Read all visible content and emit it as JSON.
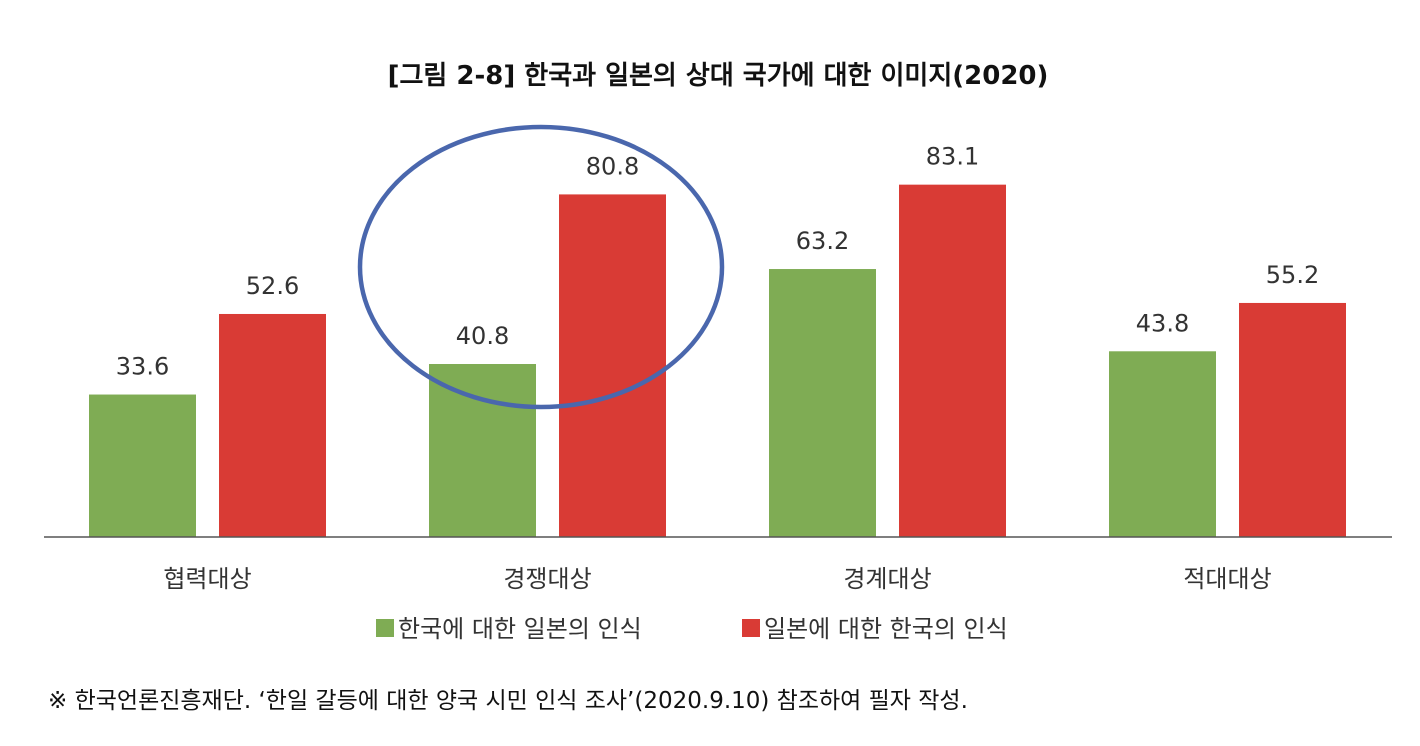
{
  "colors": {
    "series_korea": "#7fac54",
    "series_japan": "#d93b35",
    "highlight_ellipse": "#4a67ad",
    "axis_line": "#555555"
  },
  "chart_data": {
    "type": "bar",
    "title": "[그림 2-8] 한국과 일본의 상대 국가에 대한 이미지(2020)",
    "categories": [
      "협력대상",
      "경쟁대상",
      "경계대상",
      "적대대상"
    ],
    "series": [
      {
        "name": "한국에 대한 일본의 인식",
        "values": [
          33.6,
          40.8,
          63.2,
          43.8
        ],
        "labels": [
          "33.6",
          "40.8",
          "63.2",
          "43.8"
        ]
      },
      {
        "name": "일본에 대한 한국의 인식",
        "values": [
          52.6,
          80.8,
          83.1,
          55.2
        ],
        "labels": [
          "52.6",
          "80.8",
          "83.1",
          "55.2"
        ]
      }
    ],
    "ylim": [
      0,
      100
    ],
    "grid": false,
    "legend_position": "bottom-center",
    "highlighted_category": "경쟁대상",
    "xlabel": "",
    "ylabel": ""
  },
  "note": "※ 한국언론진흥재단. ‘한일 갈등에 대한 양국 시민 인식 조사’(2020.9.10) 참조하여 필자 작성."
}
